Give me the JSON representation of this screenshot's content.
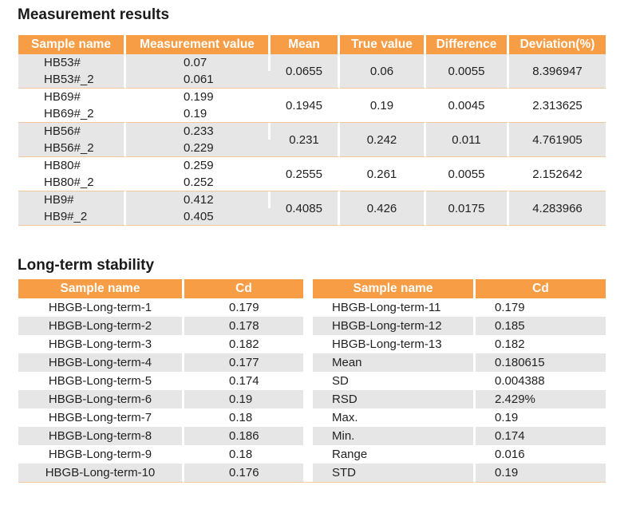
{
  "measurement": {
    "title": "Measurement results",
    "headers": [
      "Sample name",
      "Measurement value",
      "Mean",
      "True value",
      "Difference",
      "Deviation(%)"
    ],
    "groups": [
      {
        "rows": [
          {
            "name": "HB53#",
            "value": "0.07"
          },
          {
            "name": "HB53#_2",
            "value": "0.061"
          }
        ],
        "mean": "0.0655",
        "true": "0.06",
        "diff": "0.0055",
        "dev": "8.396947"
      },
      {
        "rows": [
          {
            "name": "HB69#",
            "value": "0.199"
          },
          {
            "name": "HB69#_2",
            "value": "0.19"
          }
        ],
        "mean": "0.1945",
        "true": "0.19",
        "diff": "0.0045",
        "dev": "2.313625"
      },
      {
        "rows": [
          {
            "name": "HB56#",
            "value": "0.233"
          },
          {
            "name": "HB56#_2",
            "value": "0.229"
          }
        ],
        "mean": "0.231",
        "true": "0.242",
        "diff": "0.011",
        "dev": "4.761905"
      },
      {
        "rows": [
          {
            "name": "HB80#",
            "value": "0.259"
          },
          {
            "name": "HB80#_2",
            "value": "0.252"
          }
        ],
        "mean": "0.2555",
        "true": "0.261",
        "diff": "0.0055",
        "dev": "2.152642"
      },
      {
        "rows": [
          {
            "name": "HB9#",
            "value": "0.412"
          },
          {
            "name": "HB9#_2",
            "value": "0.405"
          }
        ],
        "mean": "0.4085",
        "true": "0.426",
        "diff": "0.0175",
        "dev": "4.283966"
      }
    ]
  },
  "stability": {
    "title": "Long-term stability",
    "headers": [
      "Sample name",
      "Cd",
      "Sample name",
      "Cd"
    ],
    "rows": [
      {
        "left_name": "HBGB-Long-term-1",
        "left_cd": "0.179",
        "right_name": "HBGB-Long-term-11",
        "right_cd": "0.179"
      },
      {
        "left_name": "HBGB-Long-term-2",
        "left_cd": "0.178",
        "right_name": "HBGB-Long-term-12",
        "right_cd": "0.185"
      },
      {
        "left_name": "HBGB-Long-term-3",
        "left_cd": "0.182",
        "right_name": "HBGB-Long-term-13",
        "right_cd": "0.182"
      },
      {
        "left_name": "HBGB-Long-term-4",
        "left_cd": "0.177",
        "right_name": "Mean",
        "right_cd": "0.180615"
      },
      {
        "left_name": "HBGB-Long-term-5",
        "left_cd": "0.174",
        "right_name": "SD",
        "right_cd": "0.004388"
      },
      {
        "left_name": "HBGB-Long-term-6",
        "left_cd": "0.19",
        "right_name": "RSD",
        "right_cd": "2.429%"
      },
      {
        "left_name": "HBGB-Long-term-7",
        "left_cd": "0.18",
        "right_name": "Max.",
        "right_cd": "0.19"
      },
      {
        "left_name": "HBGB-Long-term-8",
        "left_cd": "0.186",
        "right_name": "Min.",
        "right_cd": "0.174"
      },
      {
        "left_name": "HBGB-Long-term-9",
        "left_cd": "0.18",
        "right_name": "Range",
        "right_cd": "0.016"
      },
      {
        "left_name": "HBGB-Long-term-10",
        "left_cd": "0.176",
        "right_name": "STD",
        "right_cd": "0.19"
      }
    ]
  }
}
